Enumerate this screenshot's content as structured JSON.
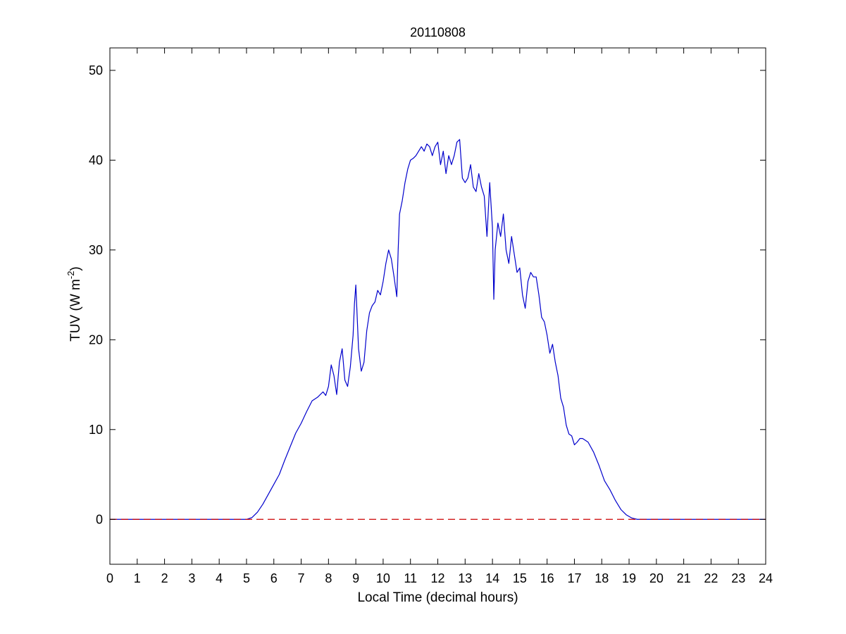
{
  "chart_data": {
    "type": "line",
    "title": "20110808",
    "xlabel": "Local Time (decimal hours)",
    "ylabel": {
      "prefix": "TUV (W m",
      "superscript": "-2",
      "suffix": ")"
    },
    "xlim": [
      0,
      24
    ],
    "ylim": [
      -5,
      52.5
    ],
    "x_ticks": [
      0,
      1,
      2,
      3,
      4,
      5,
      6,
      7,
      8,
      9,
      10,
      11,
      12,
      13,
      14,
      15,
      16,
      17,
      18,
      19,
      20,
      21,
      22,
      23,
      24
    ],
    "y_ticks": [
      0,
      10,
      20,
      30,
      40,
      50
    ],
    "grid": false,
    "series": [
      {
        "color": "#0000cc",
        "style": "solid",
        "x": [
          0,
          5.0,
          5.2,
          5.4,
          5.6,
          5.8,
          6.0,
          6.2,
          6.4,
          6.6,
          6.8,
          7.0,
          7.2,
          7.4,
          7.6,
          7.8,
          7.9,
          8.0,
          8.1,
          8.2,
          8.3,
          8.4,
          8.5,
          8.6,
          8.7,
          8.8,
          8.9,
          8.95,
          9.0,
          9.1,
          9.2,
          9.3,
          9.4,
          9.5,
          9.6,
          9.7,
          9.8,
          9.9,
          10.0,
          10.1,
          10.2,
          10.3,
          10.4,
          10.5,
          10.55,
          10.6,
          10.7,
          10.8,
          10.9,
          11.0,
          11.1,
          11.2,
          11.3,
          11.4,
          11.5,
          11.6,
          11.7,
          11.8,
          11.9,
          12.0,
          12.1,
          12.2,
          12.3,
          12.4,
          12.5,
          12.6,
          12.7,
          12.8,
          12.9,
          13.0,
          13.1,
          13.2,
          13.3,
          13.4,
          13.5,
          13.6,
          13.7,
          13.8,
          13.9,
          14.0,
          14.05,
          14.1,
          14.2,
          14.3,
          14.4,
          14.5,
          14.6,
          14.7,
          14.8,
          14.9,
          15.0,
          15.1,
          15.2,
          15.3,
          15.4,
          15.5,
          15.6,
          15.7,
          15.8,
          15.9,
          16.0,
          16.1,
          16.2,
          16.3,
          16.4,
          16.5,
          16.6,
          16.7,
          16.8,
          16.9,
          17.0,
          17.1,
          17.2,
          17.3,
          17.5,
          17.7,
          17.9,
          18.1,
          18.3,
          18.5,
          18.7,
          18.9,
          19.1,
          19.3,
          19.5,
          19.7,
          20,
          24
        ],
        "y": [
          0,
          0,
          0.2,
          0.8,
          1.7,
          2.8,
          3.9,
          5.0,
          6.6,
          8.1,
          9.6,
          10.7,
          12.0,
          13.2,
          13.6,
          14.2,
          13.8,
          14.8,
          17.2,
          16.0,
          13.9,
          17.5,
          19.0,
          15.5,
          14.8,
          17.0,
          20.5,
          24.0,
          26.1,
          19.0,
          16.5,
          17.5,
          21.0,
          23.0,
          23.8,
          24.2,
          25.5,
          25.0,
          26.5,
          28.5,
          30.0,
          29.0,
          27.0,
          24.8,
          30.0,
          34.0,
          35.5,
          37.5,
          39.0,
          40.0,
          40.2,
          40.5,
          41.0,
          41.5,
          41.0,
          41.8,
          41.5,
          40.5,
          41.5,
          42.0,
          39.5,
          41.0,
          38.5,
          40.5,
          39.5,
          40.5,
          42.0,
          42.3,
          38.0,
          37.5,
          38.0,
          39.5,
          37.0,
          36.5,
          38.5,
          37.0,
          36.0,
          31.5,
          37.5,
          32.5,
          24.5,
          30.0,
          33.0,
          31.5,
          34.0,
          30.0,
          28.5,
          31.5,
          29.5,
          27.5,
          28.0,
          25.0,
          23.5,
          26.5,
          27.5,
          27.0,
          27.0,
          25.0,
          22.5,
          22.0,
          20.5,
          18.5,
          19.5,
          17.5,
          16.0,
          13.5,
          12.5,
          10.5,
          9.5,
          9.3,
          8.3,
          8.6,
          9.0,
          9.0,
          8.6,
          7.5,
          6.0,
          4.3,
          3.3,
          2.1,
          1.1,
          0.5,
          0.15,
          0,
          0,
          0,
          0,
          0
        ]
      },
      {
        "color": "#cc0000",
        "style": "dashed",
        "x": [
          0,
          24
        ],
        "y": [
          0,
          0
        ]
      }
    ]
  }
}
